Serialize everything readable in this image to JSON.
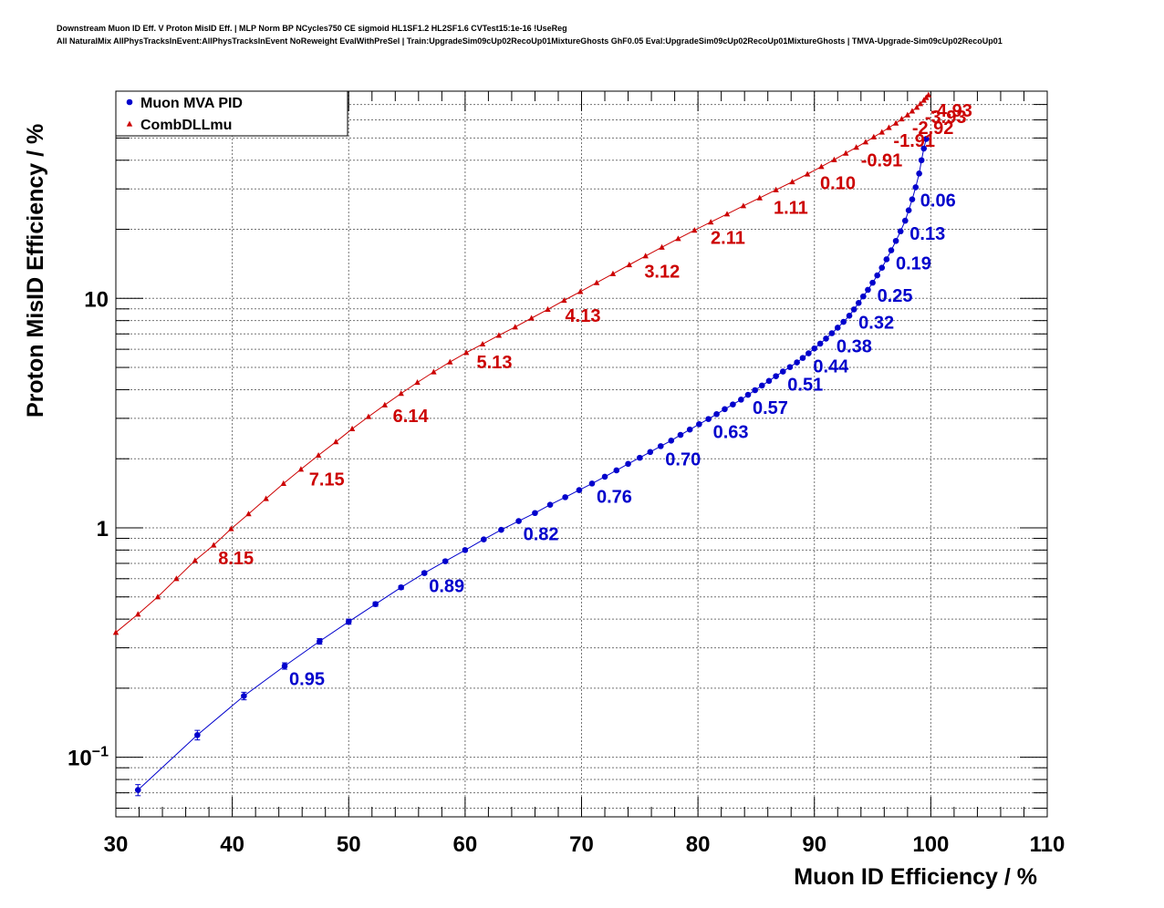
{
  "title_lines": [
    "Downstream Muon ID Eff. V Proton MisID Eff. | MLP Norm BP NCycles750 CE sigmoid HL1SF1.2 HL2SF1.6 CVTest15:1e-16 !UseReg",
    "All NaturalMix AllPhysTracksInEvent:AllPhysTracksInEvent NoReweight EvalWithPreSel | Train:UpgradeSim09cUp02RecoUp01MixtureGhosts GhF0.05 Eval:UpgradeSim09cUp02RecoUp01MixtureGhosts | TMVA-Upgrade-Sim09cUp02RecoUp01"
  ],
  "chart_data": {
    "type": "scatter",
    "xlabel": "Muon ID Efficiency / %",
    "ylabel": "Proton MisID Efficiency / %",
    "xlim": [
      30,
      110
    ],
    "ylim": [
      0.055,
      80
    ],
    "yscale": "log",
    "grid": true,
    "legend_position": "top-left",
    "x_ticks": [
      "30",
      "40",
      "50",
      "60",
      "70",
      "80",
      "90",
      "100",
      "110"
    ],
    "y_ticks": [
      {
        "base": "10",
        "exp": "−1",
        "value": 0.1
      },
      {
        "base": "1",
        "exp": "",
        "value": 1
      },
      {
        "base": "10",
        "exp": "",
        "value": 10
      }
    ],
    "series": [
      {
        "name": "Muon MVA PID",
        "color": "#0000cc",
        "marker": "circle",
        "x": [
          31.9,
          37.0,
          41.0,
          44.5,
          47.5,
          50.0,
          52.3,
          54.5,
          56.5,
          58.3,
          60.0,
          61.6,
          63.1,
          64.6,
          66.0,
          67.3,
          68.6,
          69.8,
          70.9,
          72.0,
          73.0,
          74.0,
          75.0,
          75.9,
          76.8,
          77.7,
          78.5,
          79.3,
          80.1,
          80.9,
          81.6,
          82.3,
          83.0,
          83.7,
          84.3,
          84.9,
          85.5,
          86.1,
          86.7,
          87.3,
          87.9,
          88.5,
          89.0,
          89.5,
          90.0,
          90.5,
          91.0,
          91.5,
          92.0,
          92.5,
          93.0,
          93.4,
          93.8,
          94.2,
          94.6,
          95.0,
          95.4,
          95.8,
          96.2,
          96.6,
          97.0,
          97.4,
          97.8,
          98.1,
          98.4,
          98.7,
          99.0,
          99.2,
          99.4,
          99.6
        ],
        "y": [
          0.072,
          0.125,
          0.185,
          0.25,
          0.32,
          0.39,
          0.465,
          0.55,
          0.635,
          0.715,
          0.8,
          0.89,
          0.98,
          1.07,
          1.16,
          1.26,
          1.36,
          1.46,
          1.56,
          1.67,
          1.78,
          1.9,
          2.02,
          2.14,
          2.27,
          2.4,
          2.54,
          2.68,
          2.83,
          2.98,
          3.13,
          3.29,
          3.45,
          3.62,
          3.8,
          3.98,
          4.17,
          4.37,
          4.58,
          4.8,
          5.02,
          5.26,
          5.5,
          5.76,
          6.05,
          6.35,
          6.68,
          7.05,
          7.45,
          7.9,
          8.4,
          8.95,
          9.55,
          10.2,
          10.9,
          11.7,
          12.6,
          13.6,
          14.8,
          16.2,
          17.8,
          19.6,
          21.8,
          24.2,
          27.0,
          30.5,
          35.0,
          40.0,
          45.0,
          49.5
        ],
        "yerr": [
          0.004,
          0.006,
          0.007,
          0.008,
          0.009,
          0.01,
          0.01,
          0.01,
          0.01,
          0.01,
          0.01,
          0.01,
          0.01,
          0.01,
          0.01,
          0.01,
          0.01,
          0.01,
          0.01,
          0.01,
          0.01,
          0.01,
          0.01,
          0.01,
          0.01,
          0.01,
          0.01,
          0.01,
          0.01,
          0.01,
          0.01,
          0.01,
          0.01,
          0.01,
          0.01,
          0.01,
          0.01,
          0.01,
          0.01,
          0.01,
          0.01,
          0.01,
          0.01,
          0.01,
          0.01,
          0.01,
          0.01,
          0.01,
          0.01,
          0.01,
          0.01,
          0.01,
          0.01,
          0.01,
          0.01,
          0.01,
          0.01,
          0.01,
          0.01,
          0.01,
          0.01,
          0.01,
          0.01,
          0.01,
          0.01,
          0.01,
          0.01,
          0.01,
          0.01,
          0.01
        ],
        "labels": [
          {
            "text": "0.95",
            "x": 44.5,
            "y": 0.25
          },
          {
            "text": "0.89",
            "x": 56.5,
            "y": 0.635
          },
          {
            "text": "0.82",
            "x": 64.6,
            "y": 1.07
          },
          {
            "text": "0.76",
            "x": 70.9,
            "y": 1.56
          },
          {
            "text": "0.70",
            "x": 76.8,
            "y": 2.27
          },
          {
            "text": "0.63",
            "x": 80.9,
            "y": 2.98
          },
          {
            "text": "0.57",
            "x": 84.3,
            "y": 3.8
          },
          {
            "text": "0.51",
            "x": 87.3,
            "y": 4.8
          },
          {
            "text": "0.44",
            "x": 89.5,
            "y": 5.76
          },
          {
            "text": "0.38",
            "x": 91.5,
            "y": 7.05
          },
          {
            "text": "0.32",
            "x": 93.4,
            "y": 8.95
          },
          {
            "text": "0.25",
            "x": 95.0,
            "y": 11.7
          },
          {
            "text": "0.19",
            "x": 96.6,
            "y": 16.2
          },
          {
            "text": "0.13",
            "x": 97.8,
            "y": 21.8
          },
          {
            "text": "0.06",
            "x": 98.7,
            "y": 30.5
          }
        ]
      },
      {
        "name": "CombDLLmu",
        "color": "#cc0000",
        "marker": "triangle",
        "x": [
          30.0,
          31.9,
          33.6,
          35.2,
          36.8,
          38.4,
          39.9,
          41.4,
          42.9,
          44.4,
          45.9,
          47.4,
          48.9,
          50.3,
          51.7,
          53.1,
          54.5,
          55.9,
          57.3,
          58.7,
          60.1,
          61.5,
          62.9,
          64.3,
          65.7,
          67.1,
          68.5,
          69.9,
          71.3,
          72.7,
          74.1,
          75.5,
          76.9,
          78.3,
          79.7,
          81.1,
          82.5,
          83.9,
          85.3,
          86.7,
          88.1,
          89.4,
          90.6,
          91.7,
          92.7,
          93.6,
          94.4,
          95.1,
          95.8,
          96.4,
          97.0,
          97.5,
          98.0,
          98.4,
          98.8,
          99.1,
          99.4,
          99.6,
          99.8
        ],
        "y": [
          0.35,
          0.42,
          0.5,
          0.6,
          0.72,
          0.84,
          0.99,
          1.15,
          1.34,
          1.56,
          1.8,
          2.07,
          2.37,
          2.7,
          3.05,
          3.43,
          3.85,
          4.3,
          4.78,
          5.28,
          5.8,
          6.32,
          6.9,
          7.5,
          8.2,
          8.95,
          9.8,
          10.7,
          11.7,
          12.8,
          14.0,
          15.3,
          16.7,
          18.2,
          19.8,
          21.5,
          23.3,
          25.3,
          27.4,
          29.7,
          32.2,
          34.8,
          37.5,
          40.2,
          42.9,
          45.5,
          48.0,
          50.5,
          53.0,
          55.5,
          58.0,
          60.5,
          63.0,
          65.5,
          68.0,
          70.5,
          73.0,
          75.0,
          77.0
        ],
        "labels": [
          {
            "text": "8.15",
            "x": 38.4,
            "y": 0.84
          },
          {
            "text": "7.15",
            "x": 46.2,
            "y": 1.85
          },
          {
            "text": "6.14",
            "x": 53.4,
            "y": 3.5
          },
          {
            "text": "5.13",
            "x": 60.6,
            "y": 6.0
          },
          {
            "text": "4.13",
            "x": 68.2,
            "y": 9.6
          },
          {
            "text": "3.12",
            "x": 75.0,
            "y": 14.9
          },
          {
            "text": "2.11",
            "x": 80.7,
            "y": 20.9
          },
          {
            "text": "1.11",
            "x": 86.1,
            "y": 28.3
          },
          {
            "text": "0.10",
            "x": 90.1,
            "y": 36.2
          },
          {
            "text": "-0.91",
            "x": 93.6,
            "y": 45.5
          },
          {
            "text": "-1.91",
            "x": 96.4,
            "y": 55.5
          },
          {
            "text": "-2.92",
            "x": 98.0,
            "y": 63.0
          },
          {
            "text": "-3.93",
            "x": 99.1,
            "y": 70.5
          },
          {
            "text": "-4.93",
            "x": 99.6,
            "y": 75.0
          }
        ]
      }
    ]
  }
}
